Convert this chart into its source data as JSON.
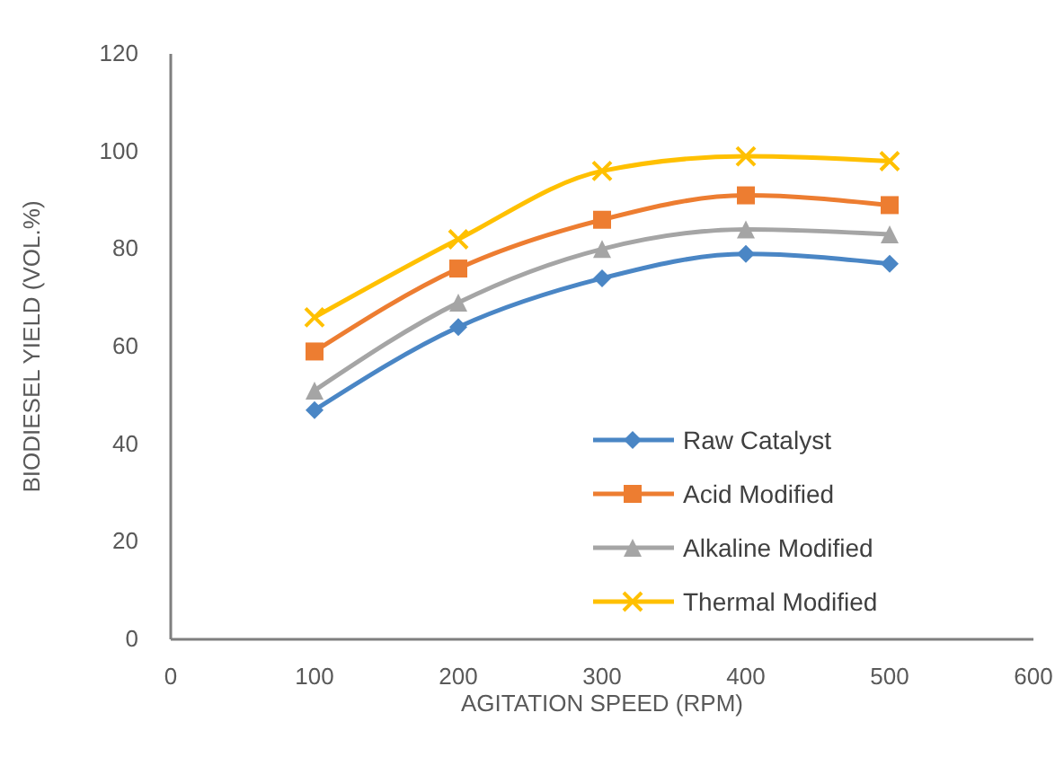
{
  "chart_data": {
    "type": "line",
    "xlabel": "AGITATION SPEED (RPM)",
    "ylabel": "BIODIESEL YIELD (VOL.%)",
    "x": [
      100,
      200,
      300,
      400,
      500
    ],
    "xlim": [
      0,
      600
    ],
    "xticks": [
      0,
      100,
      200,
      300,
      400,
      500,
      600
    ],
    "ylim": [
      0,
      120
    ],
    "yticks": [
      0,
      20,
      40,
      60,
      80,
      100,
      120
    ],
    "grid": false,
    "legend": "bottom right",
    "series": [
      {
        "name": "Raw Catalyst",
        "color": "#4a86c5",
        "marker": "diamond",
        "values": [
          47,
          64,
          74,
          79,
          77
        ]
      },
      {
        "name": "Acid Modified",
        "color": "#ed7d31",
        "marker": "square",
        "values": [
          59,
          76,
          86,
          91,
          89
        ]
      },
      {
        "name": "Alkaline Modified",
        "color": "#a5a5a5",
        "marker": "triangle",
        "values": [
          51,
          69,
          80,
          84,
          83
        ]
      },
      {
        "name": "Thermal Modified",
        "color": "#ffc000",
        "marker": "cross",
        "values": [
          66,
          82,
          96,
          99,
          98
        ]
      }
    ]
  }
}
